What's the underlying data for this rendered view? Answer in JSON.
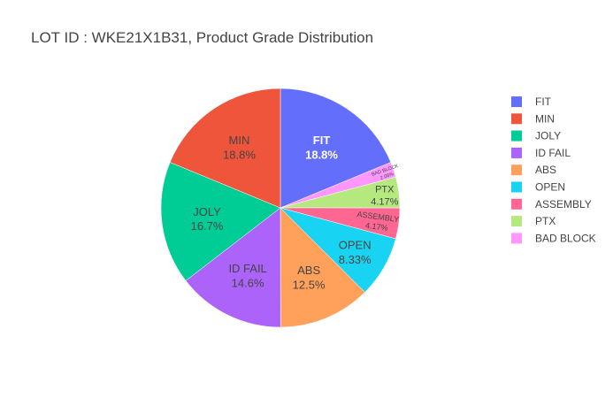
{
  "chart_data": {
    "type": "pie",
    "title": "LOT ID : WKE21X1B31, Product Grade Distribution",
    "direction": "clockwise",
    "start_angle_deg": 90,
    "legend_position": "right",
    "slices": [
      {
        "label": "FIT",
        "value": 18.8,
        "text": "18.8%",
        "color": "#636efa",
        "text_color": "#ffffff"
      },
      {
        "label": "BAD BLOCK",
        "value": 2.08,
        "text": "2.08%",
        "color": "#ff97ff",
        "text_color": "#444444"
      },
      {
        "label": "PTX",
        "value": 4.17,
        "text": "4.17%",
        "color": "#b6e880",
        "text_color": "#444444"
      },
      {
        "label": "ASSEMBLY",
        "value": 4.17,
        "text": "4.17%",
        "color": "#ff6692",
        "text_color": "#444444"
      },
      {
        "label": "OPEN",
        "value": 8.33,
        "text": "8.33%",
        "color": "#19d3f3",
        "text_color": "#444444"
      },
      {
        "label": "ABS",
        "value": 12.5,
        "text": "12.5%",
        "color": "#ffa15a",
        "text_color": "#444444"
      },
      {
        "label": "ID FAIL",
        "value": 14.6,
        "text": "14.6%",
        "color": "#ab63fa",
        "text_color": "#444444"
      },
      {
        "label": "JOLY",
        "value": 16.7,
        "text": "16.7%",
        "color": "#00cc96",
        "text_color": "#444444"
      },
      {
        "label": "MIN",
        "value": 18.8,
        "text": "18.8%",
        "color": "#ef553b",
        "text_color": "#444444"
      }
    ],
    "legend_order": [
      "FIT",
      "MIN",
      "JOLY",
      "ID FAIL",
      "ABS",
      "OPEN",
      "ASSEMBLY",
      "PTX",
      "BAD BLOCK"
    ]
  }
}
